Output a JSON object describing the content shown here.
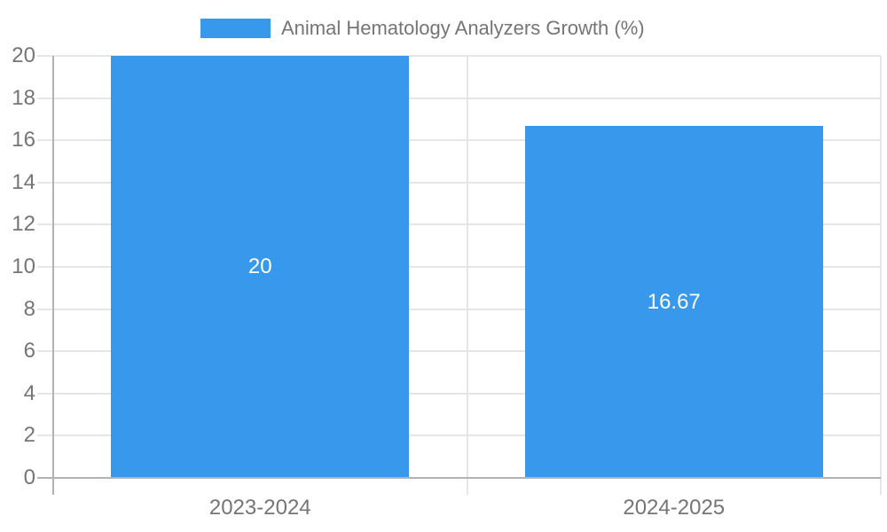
{
  "chart_data": {
    "type": "bar",
    "title": "Animal Hematology Analyzers Growth (%)",
    "categories": [
      "2023-2024",
      "2024-2025"
    ],
    "values": [
      20,
      16.67
    ],
    "value_labels": [
      "20",
      "16.67"
    ],
    "xlabel": "",
    "ylabel": "",
    "ylim": [
      0,
      20
    ],
    "yticks": [
      0,
      2,
      4,
      6,
      8,
      10,
      12,
      14,
      16,
      18,
      20
    ],
    "grid": true,
    "legend_position": "top",
    "colors": {
      "bar": "#3899EC",
      "bar_label_text": "#ffffff",
      "axis_text": "#757575",
      "legend_text": "#757575",
      "gridline": "#e6e6e6",
      "axis_line": "#b3b3b3",
      "background": "#ffffff"
    }
  }
}
